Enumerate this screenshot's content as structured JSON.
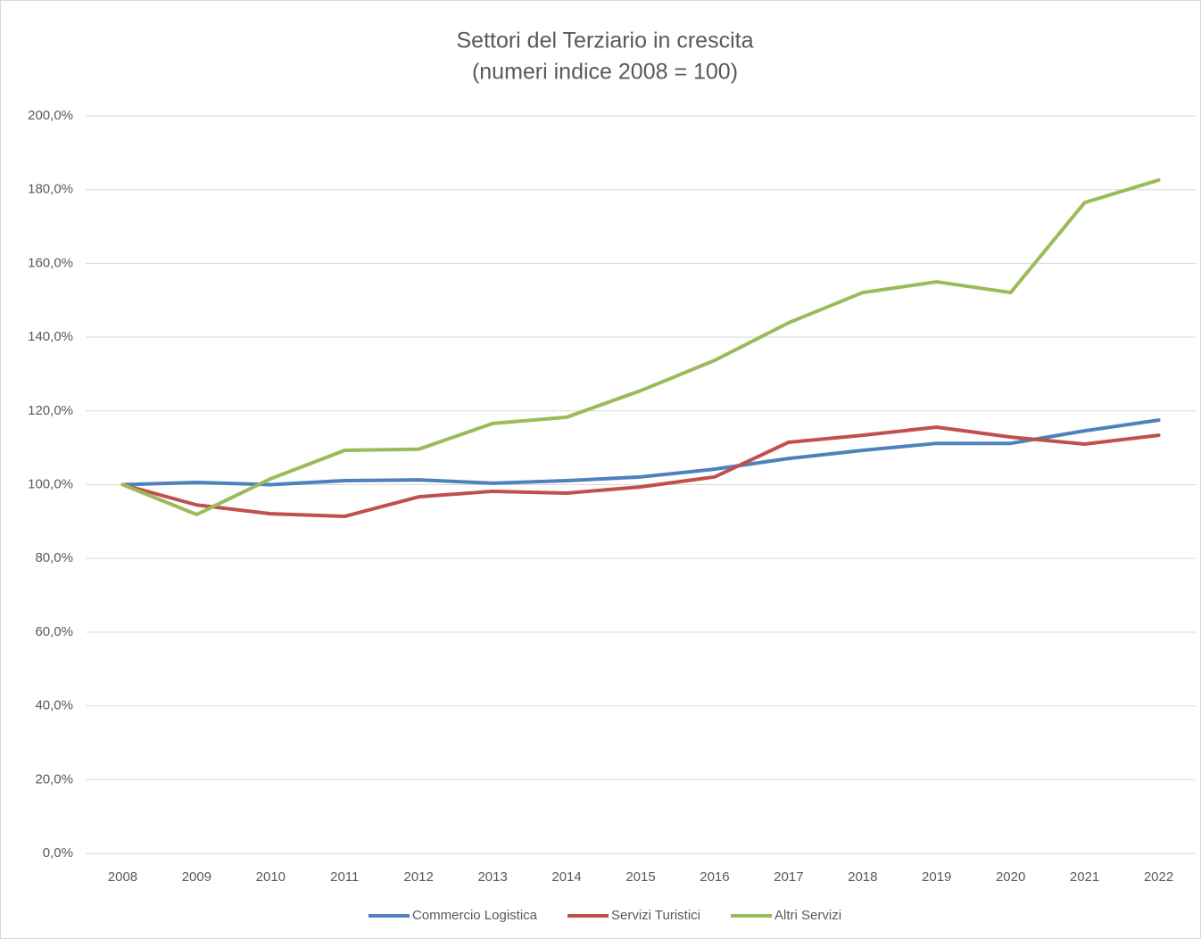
{
  "chart_data": {
    "type": "line",
    "title": "Settori del Terziario in crescita",
    "subtitle": "(numeri indice 2008 = 100)",
    "categories": [
      "2008",
      "2009",
      "2010",
      "2011",
      "2012",
      "2013",
      "2014",
      "2015",
      "2016",
      "2017",
      "2018",
      "2019",
      "2020",
      "2021",
      "2022"
    ],
    "series": [
      {
        "name": "Commercio Logistica",
        "color": "#4f81bd",
        "values": [
          100,
          100.6,
          100.0,
          101.1,
          101.3,
          100.4,
          101.1,
          102.1,
          104.2,
          107.1,
          109.3,
          111.2,
          111.2,
          114.6,
          117.5
        ]
      },
      {
        "name": "Servizi Turistici",
        "color": "#c0504d",
        "values": [
          100,
          94.5,
          92.1,
          91.4,
          96.7,
          98.2,
          97.7,
          99.4,
          102.1,
          111.5,
          113.4,
          115.6,
          112.9,
          111.0,
          113.4
        ]
      },
      {
        "name": "Altri Servizi",
        "color": "#9bbb59",
        "values": [
          100,
          91.9,
          101.6,
          109.3,
          109.6,
          116.6,
          118.3,
          125.5,
          133.7,
          143.9,
          152.1,
          155.0,
          152.1,
          176.5,
          182.6
        ]
      }
    ],
    "ylim": [
      0,
      200
    ],
    "yticks": [
      {
        "value": 0,
        "label": "0,0%"
      },
      {
        "value": 20,
        "label": "20,0%"
      },
      {
        "value": 40,
        "label": "40,0%"
      },
      {
        "value": 60,
        "label": "60,0%"
      },
      {
        "value": 80,
        "label": "80,0%"
      },
      {
        "value": 100,
        "label": "100,0%"
      },
      {
        "value": 120,
        "label": "120,0%"
      },
      {
        "value": 140,
        "label": "140,0%"
      },
      {
        "value": 160,
        "label": "160,0%"
      },
      {
        "value": 180,
        "label": "180,0%"
      },
      {
        "value": 200,
        "label": "200,0%"
      }
    ],
    "grid": true,
    "legend": "bottom"
  }
}
